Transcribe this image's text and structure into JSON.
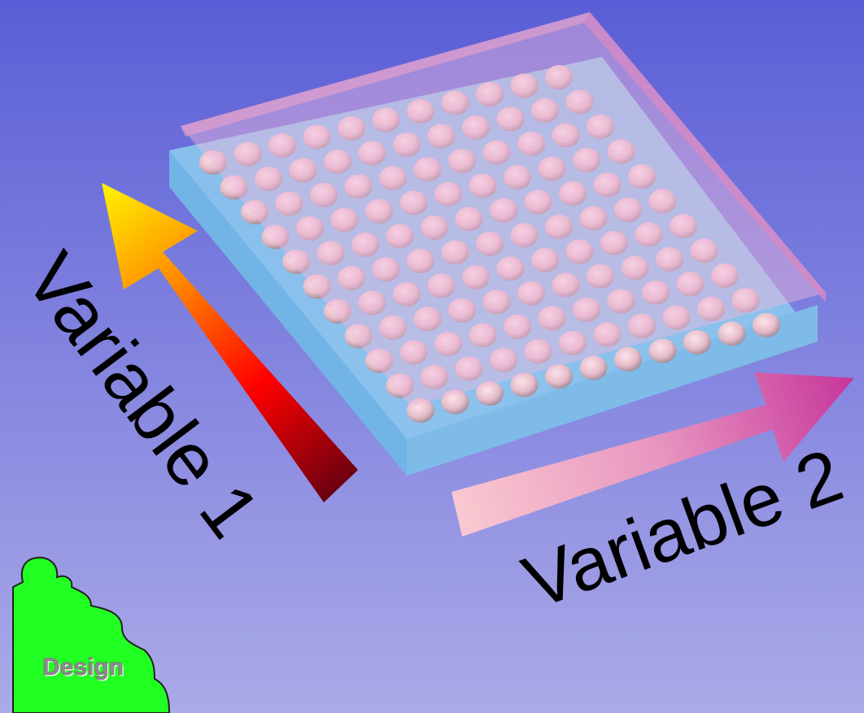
{
  "labels": {
    "variable_1": "Variable 1",
    "variable_2": "Variable 2",
    "badge": "Design"
  }
}
